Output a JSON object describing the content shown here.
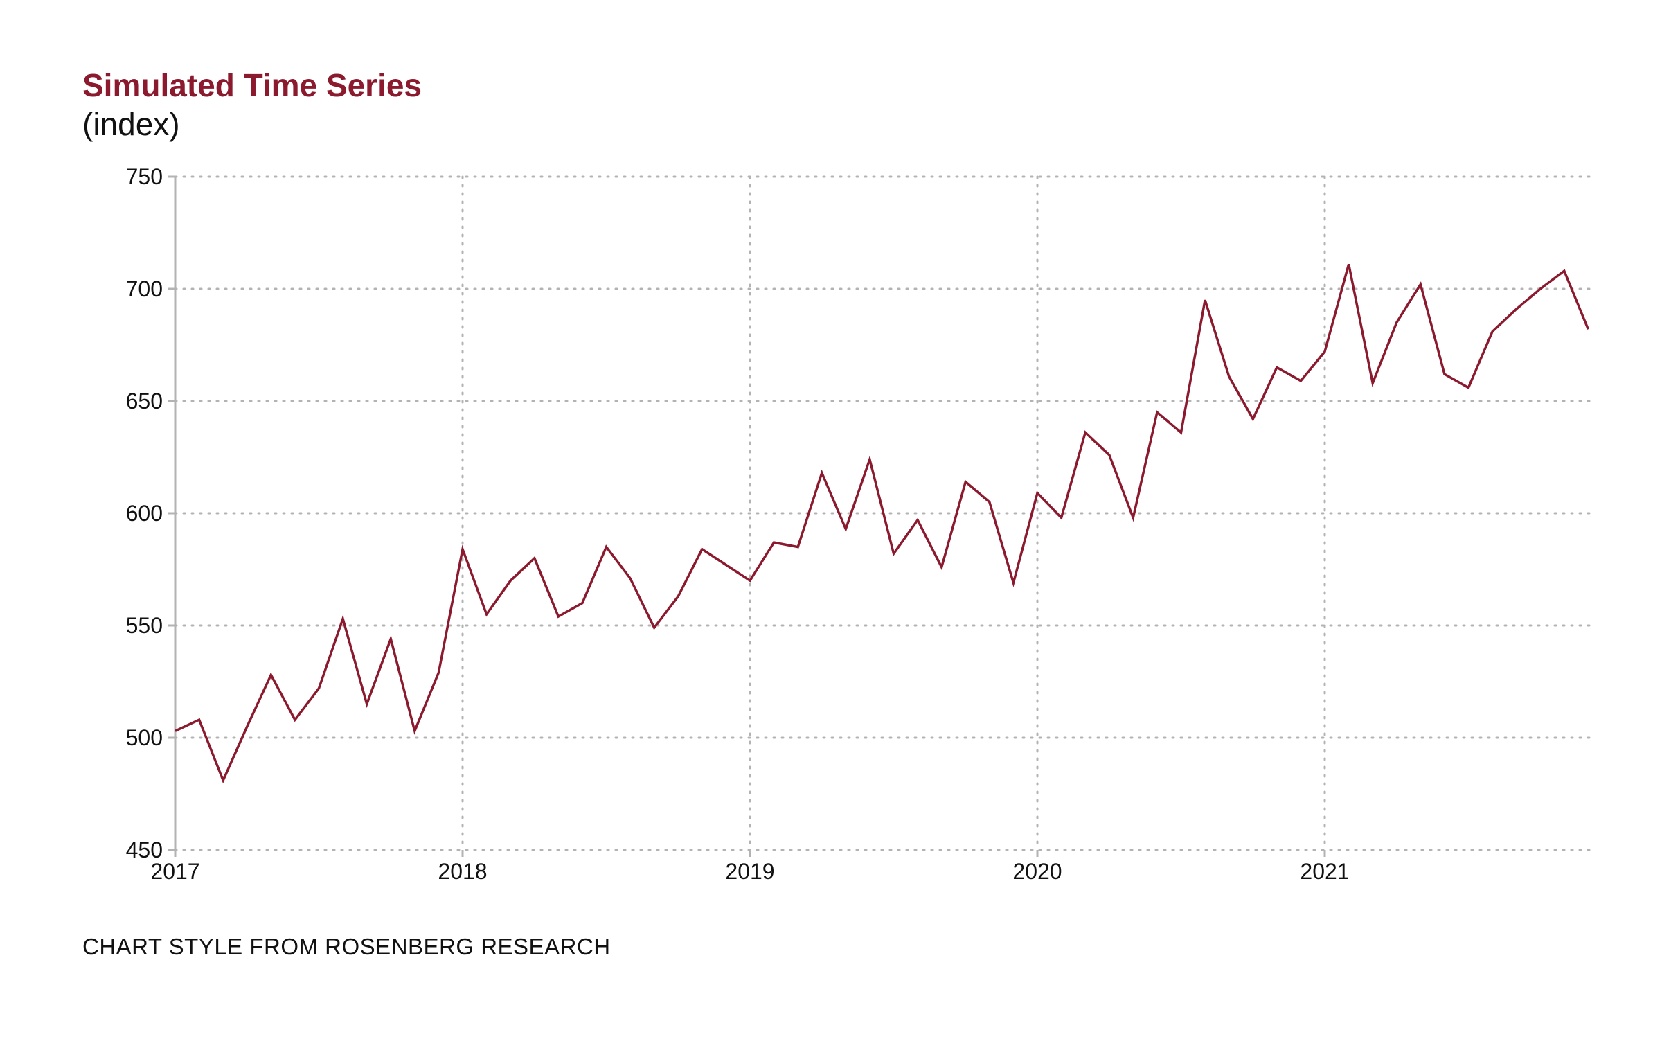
{
  "title": "Simulated Time Series",
  "subtitle": "(index)",
  "caption": "CHART STYLE FROM ROSENBERG RESEARCH",
  "colors": {
    "line": "#8b1a2f",
    "grid": "#b3b3b3",
    "axis": "#b3b3b3",
    "title": "#8b1a2f"
  },
  "chart_data": {
    "type": "line",
    "title": "Simulated Time Series",
    "subtitle": "(index)",
    "xlabel": "",
    "ylabel": "",
    "xlim": [
      "2017-01",
      "2021-12"
    ],
    "ylim": [
      450,
      750
    ],
    "grid": true,
    "legend": "none",
    "x_ticks": [
      "2017",
      "2018",
      "2019",
      "2020",
      "2021"
    ],
    "y_ticks": [
      450,
      500,
      550,
      600,
      650,
      700,
      750
    ],
    "x": [
      "2017-01",
      "2017-02",
      "2017-03",
      "2017-04",
      "2017-05",
      "2017-06",
      "2017-07",
      "2017-08",
      "2017-09",
      "2017-10",
      "2017-11",
      "2017-12",
      "2018-01",
      "2018-02",
      "2018-03",
      "2018-04",
      "2018-05",
      "2018-06",
      "2018-07",
      "2018-08",
      "2018-09",
      "2018-10",
      "2018-11",
      "2018-12",
      "2019-01",
      "2019-02",
      "2019-03",
      "2019-04",
      "2019-05",
      "2019-06",
      "2019-07",
      "2019-08",
      "2019-09",
      "2019-10",
      "2019-11",
      "2019-12",
      "2020-01",
      "2020-02",
      "2020-03",
      "2020-04",
      "2020-05",
      "2020-06",
      "2020-07",
      "2020-08",
      "2020-09",
      "2020-10",
      "2020-11",
      "2020-12",
      "2021-01",
      "2021-02",
      "2021-03",
      "2021-04",
      "2021-05",
      "2021-06",
      "2021-07",
      "2021-08",
      "2021-09",
      "2021-10",
      "2021-11",
      "2021-12"
    ],
    "series": [
      {
        "values": [
          503,
          508,
          481,
          505,
          528,
          508,
          522,
          553,
          515,
          544,
          503,
          529,
          584,
          555,
          570,
          580,
          554,
          560,
          585,
          571,
          549,
          563,
          584,
          577,
          570,
          587,
          585,
          618,
          593,
          624,
          582,
          597,
          576,
          614,
          605,
          569,
          609,
          598,
          636,
          626,
          598,
          645,
          636,
          695,
          661,
          642,
          665,
          659,
          672,
          711,
          658,
          685,
          702,
          662,
          656,
          681,
          691,
          700,
          708,
          682
        ]
      }
    ]
  }
}
